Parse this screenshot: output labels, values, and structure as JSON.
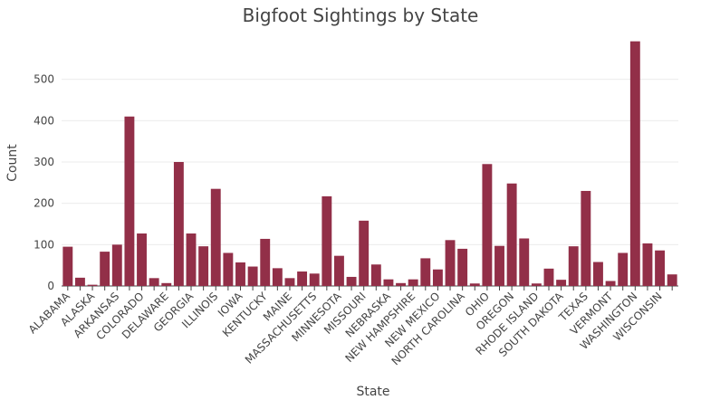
{
  "chart_data": {
    "type": "bar",
    "title": "Bigfoot Sightings by State",
    "xlabel": "State",
    "ylabel": "Count",
    "categories": [
      "ALABAMA",
      null,
      "ALASKA",
      null,
      "ARKANSAS",
      null,
      "COLORADO",
      null,
      "DELAWARE",
      null,
      "GEORGIA",
      null,
      "ILLINOIS",
      null,
      "IOWA",
      null,
      "KENTUCKY",
      null,
      "MAINE",
      null,
      "MASSACHUSETTS",
      null,
      "MINNESOTA",
      null,
      "MISSOURI",
      null,
      "NEBRASKA",
      null,
      "NEW HAMPSHIRE",
      null,
      "NEW MEXICO",
      null,
      "NORTH CAROLINA",
      null,
      "OHIO",
      null,
      "OREGON",
      null,
      "RHODE ISLAND",
      null,
      "SOUTH DAKOTA",
      null,
      "TEXAS",
      null,
      "VERMONT",
      null,
      "WASHINGTON",
      null,
      "WISCONSIN",
      null
    ],
    "values": [
      95,
      20,
      3,
      83,
      100,
      410,
      127,
      19,
      7,
      300,
      127,
      96,
      235,
      80,
      57,
      47,
      114,
      43,
      19,
      35,
      30,
      217,
      73,
      22,
      158,
      52,
      16,
      7,
      16,
      67,
      40,
      111,
      90,
      6,
      295,
      97,
      248,
      115,
      6,
      42,
      15,
      96,
      230,
      58,
      12,
      80,
      592,
      103,
      86,
      28
    ],
    "color": "#922f48",
    "ylim": [
      0,
      600
    ],
    "yticks": [
      0,
      100,
      200,
      300,
      400,
      500
    ],
    "grid": true
  }
}
